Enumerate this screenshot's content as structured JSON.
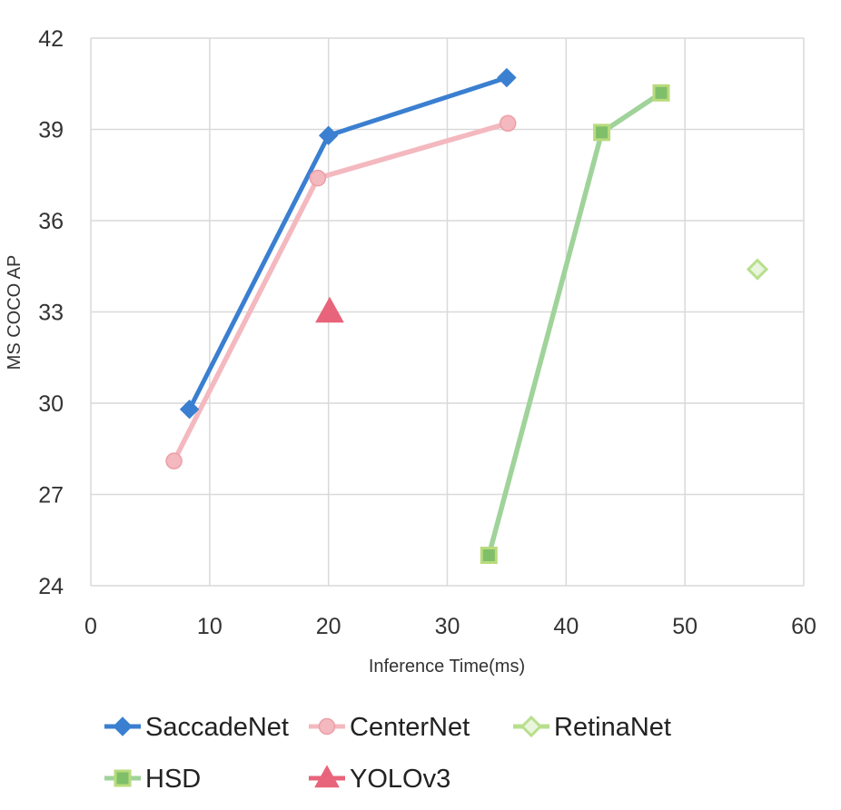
{
  "chart_data": {
    "type": "scatter",
    "title": "",
    "xlabel": "Inference Time(ms)",
    "ylabel": "MS COCO AP",
    "xlim": [
      0,
      60
    ],
    "ylim": [
      24,
      42
    ],
    "xticks": [
      0,
      10,
      20,
      30,
      40,
      50,
      60
    ],
    "yticks": [
      24,
      27,
      30,
      33,
      36,
      39,
      42
    ],
    "xtick_labels": [
      "0",
      "10",
      "20",
      "30",
      "40",
      "50",
      "60"
    ],
    "ytick_labels": [
      "24",
      "27",
      "30",
      "33",
      "36",
      "39",
      "42"
    ],
    "grid": true,
    "legend_position": "bottom",
    "series": [
      {
        "name": "SaccadeNet",
        "marker": "diamond",
        "line": true,
        "color": "#3a7fd0",
        "points": [
          [
            8.3,
            29.8
          ],
          [
            20,
            38.8
          ],
          [
            35,
            40.7
          ]
        ]
      },
      {
        "name": "CenterNet",
        "marker": "circle",
        "line": true,
        "color": "#f4b8bf",
        "points": [
          [
            7,
            28.1
          ],
          [
            19.1,
            37.4
          ],
          [
            35.1,
            39.2
          ]
        ]
      },
      {
        "name": "RetinaNet",
        "marker": "diamond-hollow",
        "line": false,
        "color": "#b8df8e",
        "points": [
          [
            56.1,
            34.4
          ]
        ]
      },
      {
        "name": "HSD",
        "marker": "square",
        "line": true,
        "color": "#9fd39a",
        "points": [
          [
            33.5,
            25
          ],
          [
            43,
            38.9
          ],
          [
            48,
            40.2
          ]
        ]
      },
      {
        "name": "YOLOv3",
        "marker": "triangle",
        "line": false,
        "color": "#e8647a",
        "points": [
          [
            20.1,
            33
          ]
        ]
      }
    ]
  }
}
